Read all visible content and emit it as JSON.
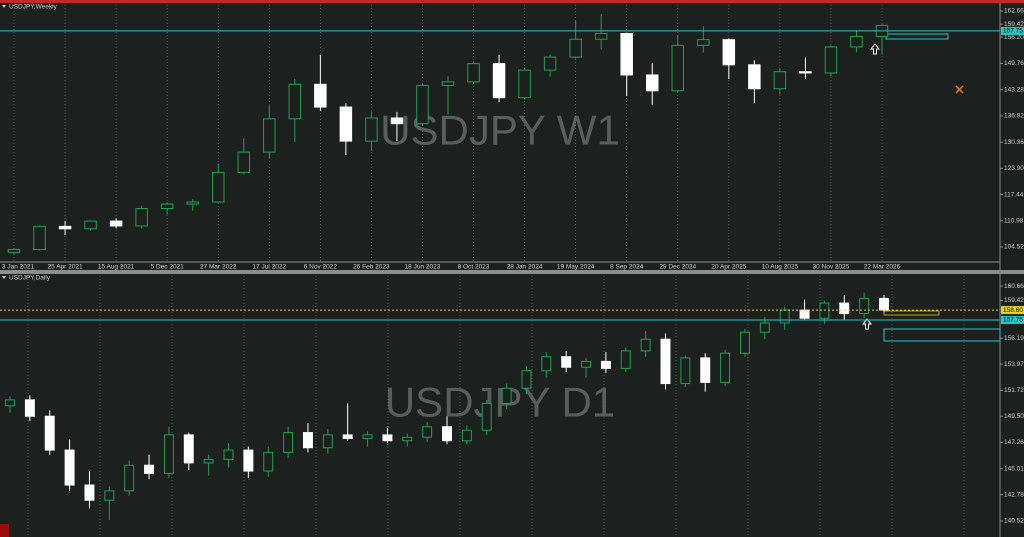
{
  "chart_data": [
    {
      "type": "candlestick",
      "title": "USDJPY,Weekly",
      "watermark": "USDJPY W1",
      "up_color": "#1fa04f",
      "down_color": "#ffffff",
      "ylim": [
        100.82,
        164.14
      ],
      "yticks": [
        {
          "value": 162.66,
          "label": "162.66"
        },
        {
          "value": 159.42,
          "label": "159.42"
        },
        {
          "value": 156.2,
          "label": "156.20"
        },
        {
          "value": 149.76,
          "label": "149.76"
        },
        {
          "value": 143.28,
          "label": "143.28"
        },
        {
          "value": 136.82,
          "label": "136.82"
        },
        {
          "value": 130.36,
          "label": "130.36"
        },
        {
          "value": 123.9,
          "label": "123.90"
        },
        {
          "value": 117.44,
          "label": "117.44"
        },
        {
          "value": 110.98,
          "label": "110.98"
        },
        {
          "value": 104.52,
          "label": "104.52"
        }
      ],
      "xticks": [
        {
          "value": 0,
          "label": "3 Jan 2021"
        },
        {
          "value": 2,
          "label": "25 Apr 2021"
        },
        {
          "value": 4,
          "label": "15 Aug 2021"
        },
        {
          "value": 6,
          "label": "5 Dec 2021"
        },
        {
          "value": 8,
          "label": "27 Mar 2022"
        },
        {
          "value": 10,
          "label": "17 Jul 2022"
        },
        {
          "value": 12,
          "label": "6 Nov 2022"
        },
        {
          "value": 14,
          "label": "26 Feb 2023"
        },
        {
          "value": 16,
          "label": "18 Jun 2023"
        },
        {
          "value": 18,
          "label": "8 Oct 2023"
        },
        {
          "value": 20,
          "label": "28 Jan 2024"
        },
        {
          "value": 22,
          "label": "19 May 2024"
        },
        {
          "value": 24,
          "label": "8 Sep 2024"
        },
        {
          "value": 26,
          "label": "29 Dec 2024"
        },
        {
          "value": 28,
          "label": "20 Apr 2025"
        },
        {
          "value": 30,
          "label": "10 Aug 2025"
        },
        {
          "value": 32,
          "label": "30 Nov 2025"
        },
        {
          "value": 34,
          "label": "22 Mar 2026"
        }
      ],
      "price_lines": [
        {
          "value": 157.75,
          "label": "157.75",
          "color": "#26c6c6"
        }
      ],
      "candles": [
        [
          103.2,
          104.2,
          102.6,
          103.9
        ],
        [
          103.9,
          109.8,
          103.7,
          109.6
        ],
        [
          109.6,
          110.9,
          107.5,
          109.0
        ],
        [
          109.0,
          111.1,
          108.6,
          110.9
        ],
        [
          110.9,
          111.6,
          109.1,
          109.7
        ],
        [
          109.7,
          114.7,
          109.1,
          114.0
        ],
        [
          114.0,
          115.5,
          112.5,
          115.1
        ],
        [
          115.1,
          116.3,
          113.5,
          115.6
        ],
        [
          115.6,
          125.1,
          115.4,
          122.9
        ],
        [
          122.9,
          131.3,
          122.4,
          127.9
        ],
        [
          127.9,
          139.4,
          126.4,
          136.1
        ],
        [
          136.1,
          145.9,
          130.4,
          144.6
        ],
        [
          144.6,
          151.9,
          138.0,
          139.0
        ],
        [
          139.0,
          139.9,
          127.2,
          130.6
        ],
        [
          130.6,
          137.9,
          128.1,
          136.3
        ],
        [
          136.3,
          137.8,
          130.6,
          134.9
        ],
        [
          134.9,
          144.7,
          134.4,
          144.3
        ],
        [
          144.3,
          146.6,
          137.2,
          145.2
        ],
        [
          145.2,
          150.2,
          144.9,
          149.7
        ],
        [
          149.7,
          151.9,
          140.2,
          141.3
        ],
        [
          141.3,
          148.8,
          140.8,
          148.1
        ],
        [
          148.1,
          151.9,
          146.5,
          151.3
        ],
        [
          151.3,
          160.2,
          151.0,
          155.7
        ],
        [
          155.7,
          161.9,
          153.2,
          157.1
        ],
        [
          157.1,
          157.3,
          141.7,
          146.9
        ],
        [
          146.9,
          149.8,
          139.6,
          143.0
        ],
        [
          143.0,
          156.7,
          142.7,
          154.2
        ],
        [
          154.2,
          158.9,
          152.4,
          155.6
        ],
        [
          155.6,
          155.9,
          145.9,
          149.4
        ],
        [
          149.4,
          150.5,
          139.9,
          143.5
        ],
        [
          143.5,
          148.6,
          142.1,
          147.7
        ],
        [
          147.7,
          151.2,
          145.9,
          147.4
        ],
        [
          147.4,
          154.2,
          146.6,
          153.8
        ],
        [
          153.8,
          157.9,
          152.5,
          156.4
        ],
        [
          156.4,
          159.4,
          151.9,
          159.1
        ]
      ]
    },
    {
      "type": "candlestick",
      "title": "USDJPY,Daily",
      "watermark": "USDJPY D1",
      "up_color": "#1fa04f",
      "down_color": "#ffffff",
      "ylim": [
        139.32,
        161.52
      ],
      "yticks": [
        {
          "value": 160.66,
          "label": "160.66"
        },
        {
          "value": 159.42,
          "label": "159.42"
        },
        {
          "value": 156.19,
          "label": "156.19"
        },
        {
          "value": 153.97,
          "label": "153.97"
        },
        {
          "value": 151.72,
          "label": "151.72"
        },
        {
          "value": 149.5,
          "label": "149.50"
        },
        {
          "value": 147.26,
          "label": "147.26"
        },
        {
          "value": 145.01,
          "label": "145.01"
        },
        {
          "value": 142.78,
          "label": "142.78"
        },
        {
          "value": 140.52,
          "label": "140.52"
        }
      ],
      "price_lines": [
        {
          "value": 158.6,
          "label": "158.60",
          "color": "#e8d21a"
        },
        {
          "value": 157.75,
          "label": "157.75",
          "color": "#26c6c6"
        }
      ],
      "candles": [
        [
          150.4,
          151.2,
          149.8,
          150.9
        ],
        [
          150.9,
          151.3,
          149.1,
          149.5
        ],
        [
          149.5,
          150.0,
          146.2,
          146.6
        ],
        [
          146.6,
          147.5,
          143.1,
          143.6
        ],
        [
          143.6,
          144.8,
          141.6,
          142.3
        ],
        [
          142.3,
          143.5,
          140.6,
          143.1
        ],
        [
          143.1,
          145.7,
          142.7,
          145.3
        ],
        [
          145.3,
          146.2,
          144.1,
          144.6
        ],
        [
          144.6,
          148.6,
          144.2,
          147.9
        ],
        [
          147.9,
          148.1,
          144.9,
          145.5
        ],
        [
          145.5,
          146.2,
          144.4,
          145.8
        ],
        [
          145.8,
          147.2,
          145.1,
          146.6
        ],
        [
          146.6,
          146.9,
          144.2,
          144.8
        ],
        [
          144.8,
          146.9,
          144.3,
          146.4
        ],
        [
          146.4,
          148.6,
          145.9,
          148.1
        ],
        [
          148.1,
          148.9,
          146.4,
          146.8
        ],
        [
          146.8,
          148.4,
          146.3,
          147.9
        ],
        [
          147.9,
          150.6,
          147.4,
          147.6
        ],
        [
          147.6,
          148.2,
          146.9,
          147.9
        ],
        [
          147.9,
          148.5,
          147.2,
          147.4
        ],
        [
          147.4,
          148.0,
          146.9,
          147.7
        ],
        [
          147.7,
          149.0,
          147.3,
          148.6
        ],
        [
          148.6,
          149.5,
          147.1,
          147.4
        ],
        [
          147.4,
          148.7,
          147.1,
          148.3
        ],
        [
          148.3,
          150.9,
          147.9,
          150.6
        ],
        [
          150.6,
          152.3,
          150.1,
          151.9
        ],
        [
          151.9,
          153.8,
          151.4,
          153.4
        ],
        [
          153.4,
          155.0,
          152.8,
          154.6
        ],
        [
          154.6,
          155.1,
          153.3,
          153.7
        ],
        [
          153.7,
          154.5,
          152.8,
          154.2
        ],
        [
          154.2,
          155.0,
          153.2,
          153.6
        ],
        [
          153.6,
          155.4,
          153.3,
          155.1
        ],
        [
          155.1,
          156.8,
          154.6,
          156.1
        ],
        [
          156.1,
          156.6,
          151.8,
          152.3
        ],
        [
          152.3,
          154.7,
          152.0,
          154.5
        ],
        [
          154.5,
          154.9,
          151.6,
          152.4
        ],
        [
          152.4,
          155.2,
          152.1,
          154.9
        ],
        [
          154.9,
          157.0,
          154.6,
          156.7
        ],
        [
          156.7,
          158.0,
          156.1,
          157.5
        ],
        [
          157.5,
          158.9,
          156.9,
          158.6
        ],
        [
          158.6,
          159.5,
          157.7,
          157.9
        ],
        [
          157.9,
          159.4,
          157.4,
          159.2
        ],
        [
          159.2,
          159.9,
          157.8,
          158.3
        ],
        [
          158.3,
          160.1,
          157.9,
          159.6
        ],
        [
          159.6,
          159.9,
          158.4,
          158.6
        ]
      ]
    }
  ]
}
